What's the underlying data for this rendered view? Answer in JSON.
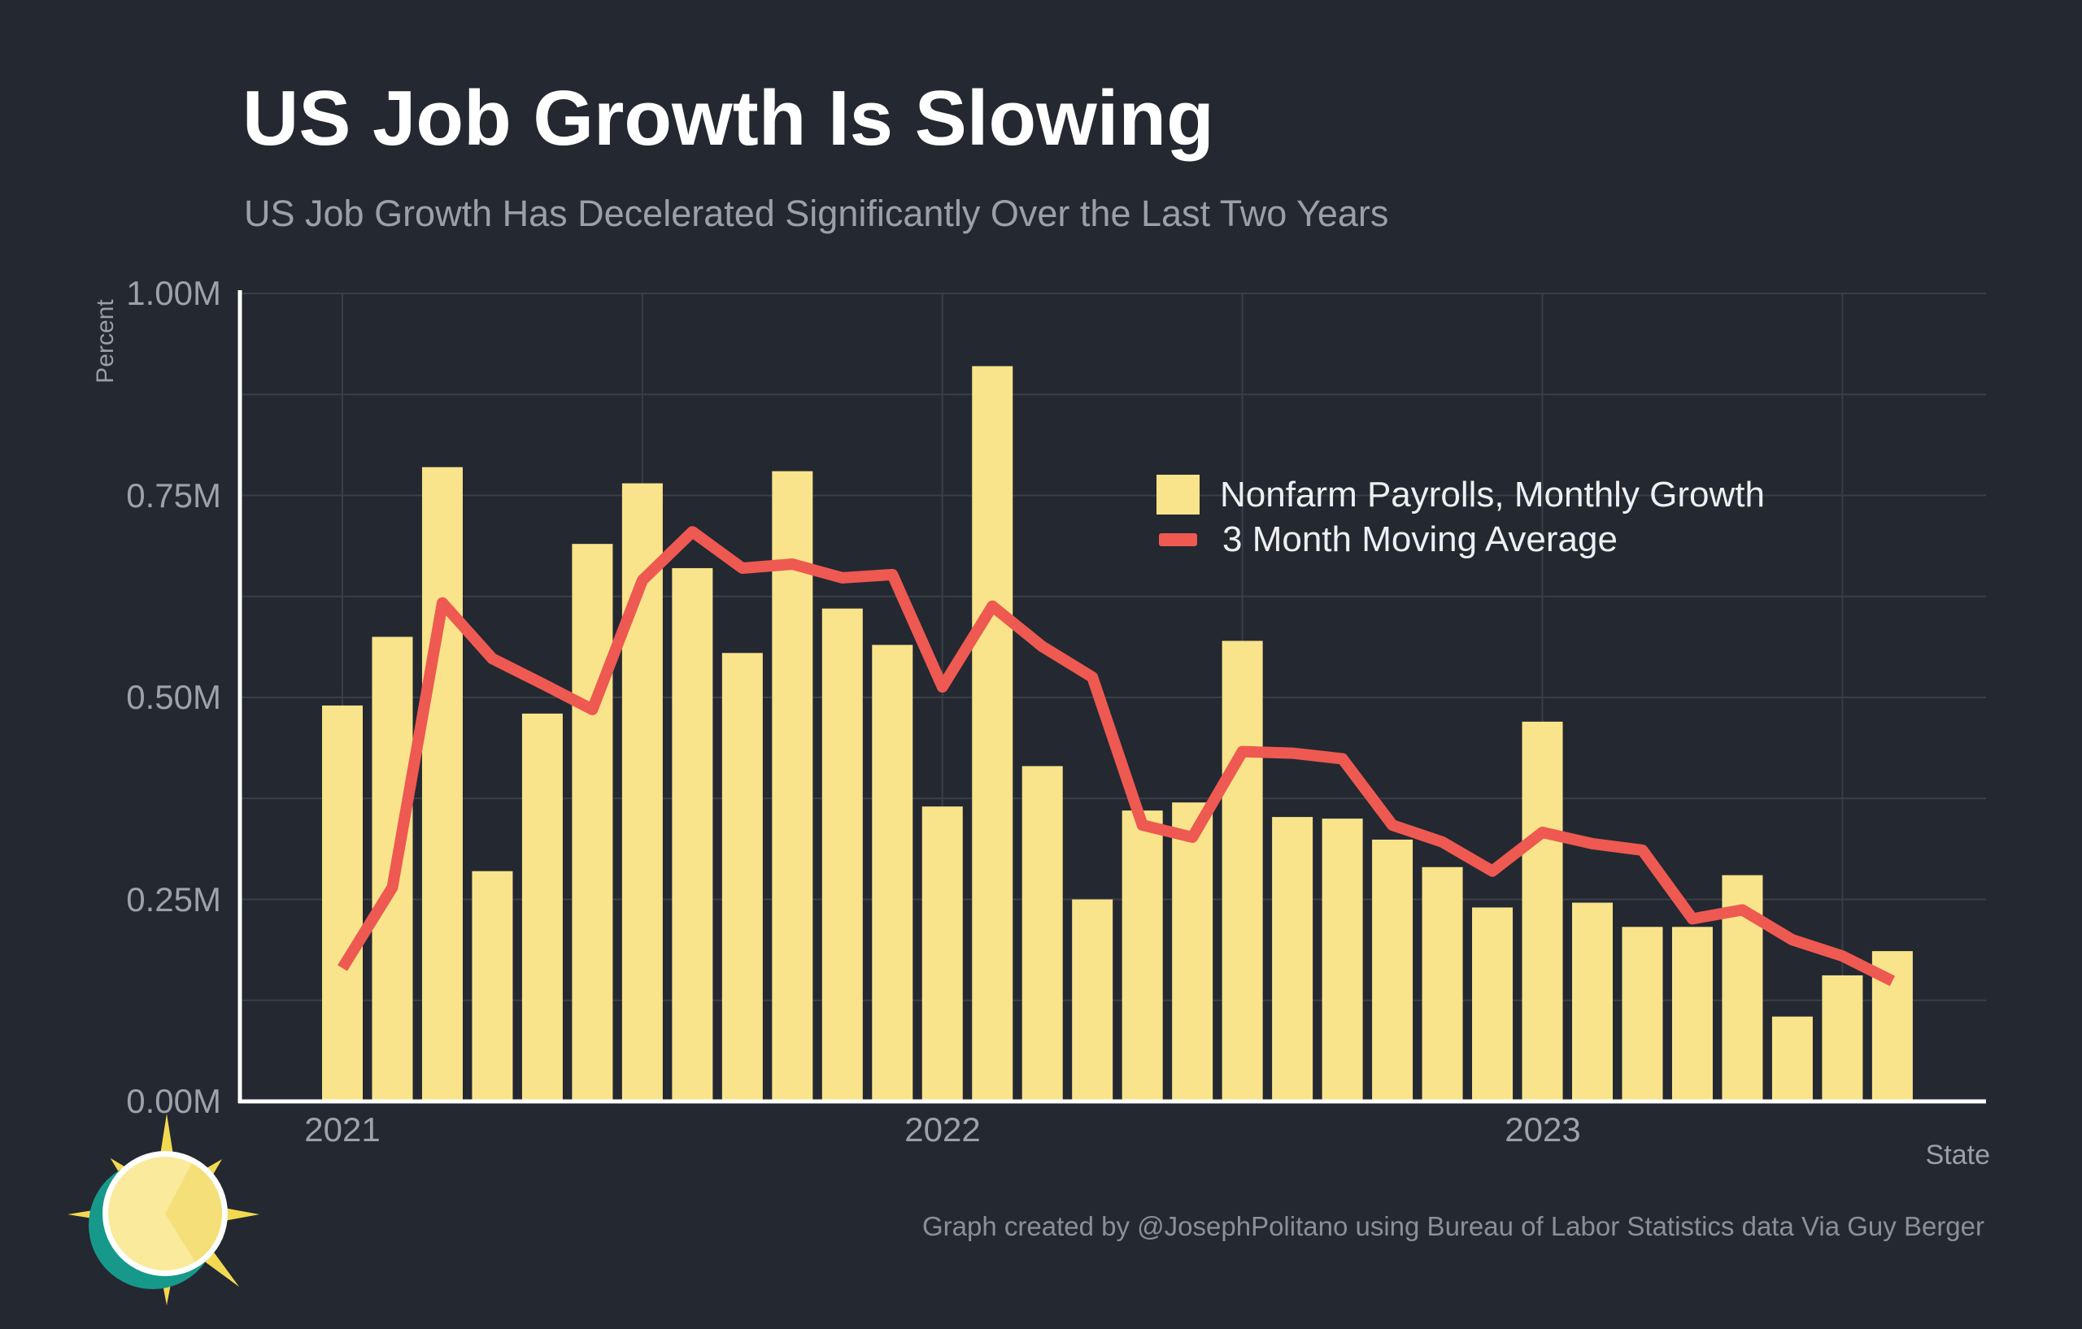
{
  "header": {
    "title": "US Job Growth Is Slowing",
    "subtitle": "US Job Growth Has Decelerated Significantly Over the Last Two Years"
  },
  "axes": {
    "y_title": "Percent",
    "x_title": "State",
    "y_ticks": [
      "0.00M",
      "0.25M",
      "0.50M",
      "0.75M",
      "1.00M"
    ],
    "x_ticks": [
      "2021",
      "2022",
      "2023"
    ]
  },
  "legend": [
    {
      "label": "Nonfarm Payrolls, Monthly Growth",
      "marker": "square",
      "color": "#f9e48b"
    },
    {
      "label": "3 Month Moving Average",
      "marker": "line",
      "color": "#ee5951"
    }
  ],
  "footer": {
    "credit": "Graph created by @JosephPolitano using Bureau of Labor Statistics data Via Guy Berger"
  },
  "colors": {
    "background": "#242831",
    "bar": "#f9e48b",
    "line": "#ee5951",
    "grid": "#3a3e47",
    "axis": "#ffffff",
    "title": "#ffffff",
    "muted_text": "#9ca2aa",
    "footer_text": "#8a9099",
    "logo_teal": "#16998b",
    "logo_rays": "#f2d952",
    "logo_body": "#f9ea9c",
    "logo_body_shade": "#f4df79"
  },
  "chart_data": {
    "type": "bar",
    "title": "US Job Growth Is Slowing",
    "subtitle": "US Job Growth Has Decelerated Significantly Over the Last Two Years",
    "xlabel": "State",
    "ylabel": "Percent",
    "ylim": [
      0,
      1.0
    ],
    "y_tick_step": 0.25,
    "y_grid_step": 0.125,
    "grid": true,
    "legend_position": "upper right",
    "x": [
      "2021-01",
      "2021-02",
      "2021-03",
      "2021-04",
      "2021-05",
      "2021-06",
      "2021-07",
      "2021-08",
      "2021-09",
      "2021-10",
      "2021-11",
      "2021-12",
      "2022-01",
      "2022-02",
      "2022-03",
      "2022-04",
      "2022-05",
      "2022-06",
      "2022-07",
      "2022-08",
      "2022-09",
      "2022-10",
      "2022-11",
      "2022-12",
      "2023-01",
      "2023-02",
      "2023-03",
      "2023-04",
      "2023-05",
      "2023-06",
      "2023-07",
      "2023-08"
    ],
    "x_tick_labels": [
      "2021",
      "2022",
      "2023"
    ],
    "x_tick_indices": [
      0,
      12,
      24
    ],
    "x_grid_indices": [
      0,
      6,
      12,
      18,
      24,
      30
    ],
    "units": "millions of jobs, monthly change",
    "series": [
      {
        "name": "Nonfarm Payrolls, Monthly Growth",
        "type": "bar",
        "color": "#f9e48b",
        "values": [
          0.49,
          0.575,
          0.785,
          0.285,
          0.48,
          0.69,
          0.765,
          0.66,
          0.555,
          0.78,
          0.61,
          0.565,
          0.365,
          0.91,
          0.415,
          0.25,
          0.36,
          0.37,
          0.57,
          0.352,
          0.35,
          0.324,
          0.29,
          0.24,
          0.47,
          0.246,
          0.216,
          0.216,
          0.28,
          0.105,
          0.156,
          0.186
        ]
      },
      {
        "name": "3 Month Moving Average",
        "type": "line",
        "color": "#ee5951",
        "values": [
          0.165,
          0.265,
          0.617,
          0.548,
          0.517,
          0.485,
          0.645,
          0.705,
          0.66,
          0.665,
          0.648,
          0.652,
          0.513,
          0.613,
          0.563,
          0.525,
          0.342,
          0.327,
          0.433,
          0.431,
          0.424,
          0.342,
          0.321,
          0.285,
          0.333,
          0.319,
          0.311,
          0.226,
          0.237,
          0.2,
          0.18,
          0.149
        ]
      }
    ]
  }
}
